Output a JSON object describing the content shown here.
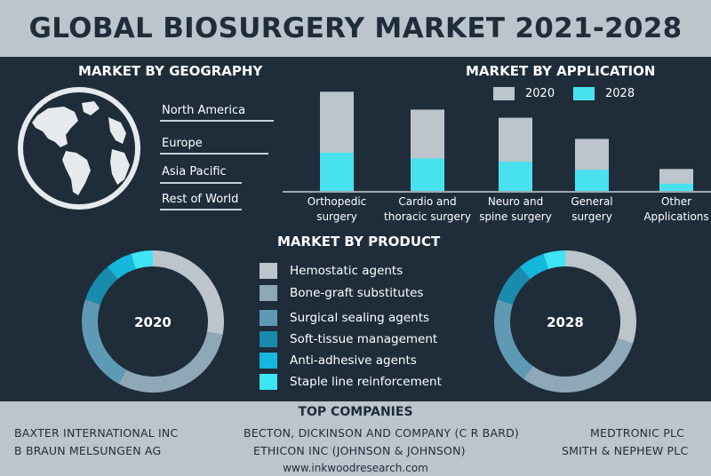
{
  "title": "GLOBAL BIOSURGERY MARKET 2021-2028",
  "geography": {
    "heading": "MARKET BY GEOGRAPHY",
    "regions": [
      "North America",
      "Europe",
      "Asia Pacific",
      "Rest of  World"
    ]
  },
  "application": {
    "heading": "MARKET BY APPLICATION"
  },
  "product": {
    "heading": "MARKET BY PRODUCT",
    "items": [
      {
        "label": "Hemostatic agents",
        "color": "#bcc4cc"
      },
      {
        "label": "Bone-graft substitutes",
        "color": "#8fa8b8"
      },
      {
        "label": "Surgical sealing agents",
        "color": "#5f9ab4"
      },
      {
        "label": "Soft-tissue management",
        "color": "#1a8aad"
      },
      {
        "label": "Anti-adhesive agents",
        "color": "#15b8dc"
      },
      {
        "label": "Staple line reinforcement",
        "color": "#3ee5f2"
      }
    ]
  },
  "chart_data": [
    {
      "type": "bar",
      "title": "MARKET BY APPLICATION",
      "categories": [
        "Orthopedic surgery",
        "Cardio and thoracic surgery",
        "Neuro and spine surgery",
        "General surgery",
        "Other Applications"
      ],
      "category_lines": [
        [
          "Orthopedic",
          "surgery"
        ],
        [
          "Cardio and",
          "thoracic surgery"
        ],
        [
          "Neuro and",
          "spine surgery"
        ],
        [
          "General",
          "surgery"
        ],
        [
          "Other",
          "Applications"
        ]
      ],
      "series": [
        {
          "name": "2020",
          "color": "#bcc4cc",
          "values": [
            122,
            100,
            90,
            64,
            27
          ]
        },
        {
          "name": "2028",
          "color": "#48e1ee",
          "values": [
            47,
            40,
            36,
            26,
            9
          ]
        }
      ],
      "ylim": [
        0,
        130
      ],
      "legend": "top"
    },
    {
      "type": "pie",
      "title": "2020",
      "categories": [
        "Hemostatic agents",
        "Bone-graft substitutes",
        "Surgical sealing agents",
        "Soft-tissue management",
        "Anti-adhesive agents",
        "Staple line reinforcement"
      ],
      "values": [
        28,
        30,
        22,
        9,
        6,
        5
      ]
    },
    {
      "type": "pie",
      "title": "2028",
      "categories": [
        "Hemostatic agents",
        "Bone-graft substitutes",
        "Surgical sealing agents",
        "Soft-tissue management",
        "Anti-adhesive agents",
        "Staple line reinforcement"
      ],
      "values": [
        30,
        30,
        20,
        9,
        6,
        5
      ]
    }
  ],
  "companies": {
    "heading": "TOP COMPANIES",
    "list": [
      "BAXTER INTERNATIONAL INC",
      "BECTON, DICKINSON AND COMPANY (C R BARD)",
      "MEDTRONIC PLC",
      "B BRAUN MELSUNGEN AG",
      "ETHICON INC (JOHNSON & JOHNSON)",
      "SMITH & NEPHEW PLC"
    ]
  },
  "website": "www.inkwoodresearch.com"
}
